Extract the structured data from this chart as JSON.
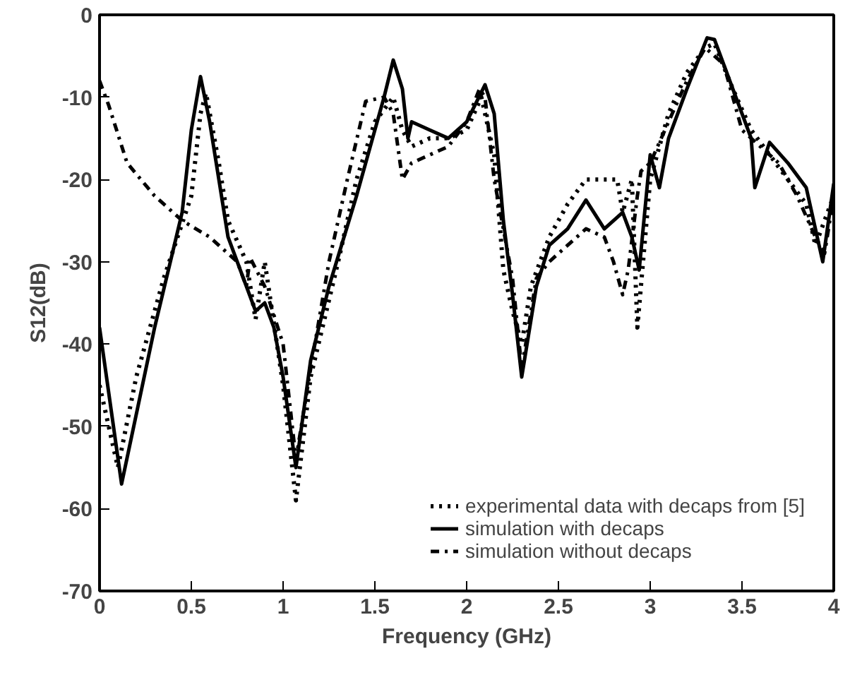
{
  "chart_data": {
    "type": "line",
    "xlabel": "Frequency (GHz)",
    "ylabel": "S12(dB)",
    "xlim": [
      0,
      4
    ],
    "ylim": [
      -70,
      0
    ],
    "xticks": [
      0,
      0.5,
      1,
      1.5,
      2,
      2.5,
      3,
      3.5,
      4
    ],
    "yticks": [
      -70,
      -60,
      -50,
      -40,
      -30,
      -20,
      -10,
      0
    ],
    "grid": false,
    "legend": "bottom right",
    "marker": "none",
    "series": [
      {
        "name": "experimental data with decaps from [5]",
        "color": "#000000",
        "line_style": "dotted",
        "x": [
          0.0,
          0.1,
          0.2,
          0.35,
          0.5,
          0.55,
          0.58,
          0.65,
          0.7,
          0.8,
          0.85,
          0.9,
          1.0,
          1.07,
          1.15,
          1.3,
          1.4,
          1.5,
          1.6,
          1.65,
          1.7,
          1.8,
          1.9,
          2.0,
          2.08,
          2.15,
          2.2,
          2.25,
          2.3,
          2.35,
          2.45,
          2.55,
          2.65,
          2.75,
          2.82,
          2.85,
          2.9,
          2.93,
          3.0,
          3.1,
          3.2,
          3.3,
          3.35,
          3.45,
          3.55,
          3.65,
          3.75,
          3.85,
          3.9,
          4.0
        ],
        "values": [
          -45,
          -55,
          -44,
          -32,
          -22,
          -12,
          -9.5,
          -18,
          -25,
          -30,
          -37,
          -30,
          -45,
          -59,
          -44,
          -30,
          -20,
          -13,
          -10,
          -14,
          -16,
          -15,
          -15,
          -14,
          -10,
          -17,
          -31,
          -36,
          -40,
          -33,
          -27,
          -23,
          -20,
          -20,
          -20,
          -24,
          -20,
          -38,
          -20,
          -12,
          -7,
          -4,
          -3.5,
          -9,
          -14,
          -17,
          -20,
          -23,
          -28,
          -22
        ]
      },
      {
        "name": "simulation with decaps",
        "color": "#000000",
        "line_style": "solid",
        "x": [
          0.0,
          0.12,
          0.3,
          0.45,
          0.5,
          0.55,
          0.6,
          0.7,
          0.8,
          0.85,
          0.9,
          0.95,
          1.0,
          1.07,
          1.15,
          1.25,
          1.4,
          1.5,
          1.55,
          1.6,
          1.65,
          1.68,
          1.7,
          1.8,
          1.9,
          2.0,
          2.1,
          2.15,
          2.2,
          2.25,
          2.3,
          2.38,
          2.45,
          2.55,
          2.65,
          2.75,
          2.85,
          2.9,
          2.94,
          3.0,
          3.05,
          3.1,
          3.2,
          3.31,
          3.35,
          3.45,
          3.55,
          3.57,
          3.65,
          3.75,
          3.85,
          3.94,
          4.0
        ],
        "values": [
          -38,
          -57,
          -38,
          -24,
          -14,
          -7.5,
          -13,
          -27,
          -33,
          -36,
          -35,
          -38,
          -44,
          -55,
          -42,
          -33,
          -22,
          -14,
          -10,
          -5.5,
          -9,
          -15,
          -13,
          -14,
          -15,
          -13,
          -8.5,
          -12,
          -25,
          -34,
          -44,
          -33,
          -28,
          -26,
          -22.5,
          -26,
          -24,
          -27,
          -31,
          -17,
          -21,
          -15,
          -9,
          -2.8,
          -3,
          -9,
          -15,
          -21,
          -15.5,
          -18,
          -21,
          -30,
          -20.5
        ]
      },
      {
        "name": "simulation without decaps",
        "color": "#000000",
        "line_style": "dashed",
        "x": [
          0.0,
          0.05,
          0.15,
          0.3,
          0.45,
          0.6,
          0.75,
          0.8,
          0.82,
          0.9,
          1.0,
          1.07,
          1.15,
          1.25,
          1.35,
          1.45,
          1.55,
          1.6,
          1.65,
          1.7,
          1.8,
          1.9,
          2.0,
          2.07,
          2.1,
          2.15,
          2.25,
          2.3,
          2.38,
          2.45,
          2.55,
          2.65,
          2.75,
          2.8,
          2.85,
          2.88,
          2.93,
          2.95,
          3.0,
          3.1,
          3.2,
          3.3,
          3.4,
          3.5,
          3.6,
          3.7,
          3.8,
          3.9,
          3.95,
          4.0
        ],
        "values": [
          -8,
          -11,
          -18,
          -22,
          -25,
          -27,
          -30,
          -33,
          -29.5,
          -33,
          -40,
          -54,
          -43,
          -30,
          -20,
          -10.5,
          -10,
          -12,
          -20,
          -18,
          -17,
          -16,
          -13,
          -9,
          -10,
          -20,
          -32,
          -43,
          -32,
          -30,
          -28,
          -26,
          -27,
          -30,
          -34,
          -31,
          -22,
          -19,
          -18,
          -13,
          -8,
          -4,
          -6,
          -14,
          -16,
          -18,
          -22,
          -27,
          -29,
          -22
        ]
      }
    ]
  }
}
